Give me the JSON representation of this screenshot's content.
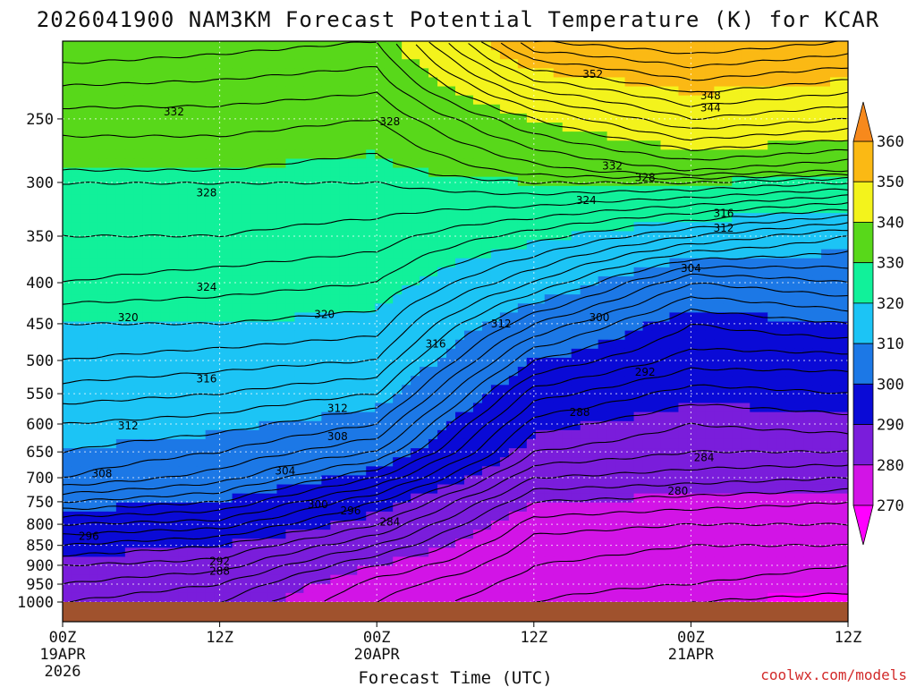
{
  "chart_data": {
    "type": "heatmap",
    "title": "2026041900 NAM3KM Forecast Potential Temperature (K) for KCAR",
    "xlabel": "Forecast Time (UTC)",
    "ylabel": "",
    "credit": "coolwx.com/models",
    "x_hours": [
      0,
      12,
      24,
      36,
      48,
      60
    ],
    "x_ticks": [
      {
        "hour": 0,
        "label": "00Z",
        "date": "19APR",
        "year": "2026"
      },
      {
        "hour": 12,
        "label": "12Z",
        "date": "",
        "year": ""
      },
      {
        "hour": 24,
        "label": "00Z",
        "date": "20APR",
        "year": ""
      },
      {
        "hour": 36,
        "label": "12Z",
        "date": "",
        "year": ""
      },
      {
        "hour": 48,
        "label": "00Z",
        "date": "21APR",
        "year": ""
      },
      {
        "hour": 60,
        "label": "12Z",
        "date": "",
        "year": ""
      }
    ],
    "pressure_ticks": [
      250,
      300,
      350,
      400,
      450,
      500,
      550,
      600,
      650,
      700,
      750,
      800,
      850,
      900,
      950,
      1000
    ],
    "ylim_hpa": [
      200,
      1000
    ],
    "colorbar": {
      "ticks": [
        360,
        350,
        340,
        330,
        320,
        310,
        300,
        290,
        280,
        270
      ],
      "bins": [
        {
          "from": 360,
          "to": 370,
          "color": "#f7891c"
        },
        {
          "from": 350,
          "to": 360,
          "color": "#fbb914"
        },
        {
          "from": 340,
          "to": 350,
          "color": "#f3f31c"
        },
        {
          "from": 330,
          "to": 340,
          "color": "#58d81a"
        },
        {
          "from": 320,
          "to": 330,
          "color": "#11f19a"
        },
        {
          "from": 310,
          "to": 320,
          "color": "#1cc4f5"
        },
        {
          "from": 300,
          "to": 310,
          "color": "#1c78e6"
        },
        {
          "from": 290,
          "to": 300,
          "color": "#0a0ad6"
        },
        {
          "from": 280,
          "to": 290,
          "color": "#7a1ddb"
        },
        {
          "from": 270,
          "to": 280,
          "color": "#d214e6"
        },
        {
          "from": 260,
          "to": 270,
          "color": "#ff00ff"
        }
      ]
    },
    "terrain_color": "#a0522d",
    "theta_profiles": [
      {
        "hour": 0,
        "p_hpa": [
          200,
          250,
          290,
          300,
          350,
          400,
          450,
          500,
          550,
          600,
          650,
          700,
          750,
          800,
          850,
          900,
          950,
          1000
        ],
        "theta_k": [
          340,
          333,
          330,
          328,
          326,
          324,
          320,
          318,
          315,
          312,
          310,
          308,
          302,
          296,
          292,
          288,
          286,
          284
        ]
      },
      {
        "hour": 12,
        "p_hpa": [
          200,
          250,
          290,
          300,
          350,
          400,
          450,
          500,
          550,
          600,
          650,
          700,
          750,
          800,
          850,
          900,
          950,
          1000
        ],
        "theta_k": [
          339,
          333,
          330,
          328,
          326,
          323,
          320,
          317,
          314,
          311,
          308,
          305,
          300,
          295,
          290,
          287,
          284,
          282
        ]
      },
      {
        "hour": 24,
        "p_hpa": [
          200,
          250,
          290,
          300,
          350,
          400,
          450,
          500,
          550,
          600,
          650,
          700,
          750,
          800,
          850,
          900,
          950,
          1000
        ],
        "theta_k": [
          338,
          332,
          329,
          328,
          325,
          322,
          319,
          316,
          312,
          308,
          304,
          298,
          292,
          288,
          284,
          280,
          277,
          276
        ]
      },
      {
        "hour": 36,
        "p_hpa": [
          200,
          250,
          290,
          300,
          350,
          400,
          450,
          500,
          550,
          600,
          650,
          700,
          750,
          800,
          850,
          900,
          950,
          1000
        ],
        "theta_k": [
          356,
          340,
          333,
          330,
          321,
          314,
          306,
          300,
          295,
          291,
          288,
          284,
          280,
          277,
          275,
          274,
          273,
          272
        ]
      },
      {
        "hour": 48,
        "p_hpa": [
          200,
          250,
          290,
          300,
          350,
          400,
          450,
          500,
          550,
          600,
          650,
          700,
          750,
          800,
          850,
          900,
          950,
          1000
        ],
        "theta_k": [
          358,
          346,
          336,
          330,
          316,
          304,
          298,
          295,
          291,
          288,
          286,
          283,
          279,
          276,
          274,
          273,
          272,
          270
        ]
      },
      {
        "hour": 60,
        "p_hpa": [
          200,
          250,
          290,
          300,
          350,
          400,
          450,
          500,
          550,
          600,
          650,
          700,
          750,
          800,
          850,
          900,
          950,
          1000
        ],
        "theta_k": [
          356,
          344,
          334,
          328,
          312,
          306,
          300,
          295,
          292,
          289,
          286,
          282,
          278,
          276,
          274,
          272,
          271,
          269
        ]
      }
    ],
    "contour_interval_k": 2,
    "contour_labels": [
      {
        "value": 352,
        "hour": 40.5,
        "p_hpa": 220
      },
      {
        "value": 348,
        "hour": 49.5,
        "p_hpa": 234
      },
      {
        "value": 344,
        "hour": 49.5,
        "p_hpa": 242
      },
      {
        "value": 332,
        "hour": 8.5,
        "p_hpa": 245
      },
      {
        "value": 328,
        "hour": 25,
        "p_hpa": 252
      },
      {
        "value": 332,
        "hour": 42,
        "p_hpa": 286
      },
      {
        "value": 328,
        "hour": 44.5,
        "p_hpa": 296
      },
      {
        "value": 328,
        "hour": 11,
        "p_hpa": 309
      },
      {
        "value": 324,
        "hour": 40,
        "p_hpa": 316
      },
      {
        "value": 316,
        "hour": 50.5,
        "p_hpa": 328
      },
      {
        "value": 312,
        "hour": 50.5,
        "p_hpa": 342
      },
      {
        "value": 304,
        "hour": 48,
        "p_hpa": 384
      },
      {
        "value": 324,
        "hour": 11,
        "p_hpa": 405
      },
      {
        "value": 320,
        "hour": 5,
        "p_hpa": 442
      },
      {
        "value": 320,
        "hour": 20,
        "p_hpa": 438
      },
      {
        "value": 312,
        "hour": 33.5,
        "p_hpa": 450
      },
      {
        "value": 300,
        "hour": 41,
        "p_hpa": 442
      },
      {
        "value": 316,
        "hour": 28.5,
        "p_hpa": 477
      },
      {
        "value": 292,
        "hour": 44.5,
        "p_hpa": 517
      },
      {
        "value": 316,
        "hour": 11,
        "p_hpa": 527
      },
      {
        "value": 312,
        "hour": 21,
        "p_hpa": 574
      },
      {
        "value": 288,
        "hour": 39.5,
        "p_hpa": 580
      },
      {
        "value": 312,
        "hour": 5,
        "p_hpa": 603
      },
      {
        "value": 308,
        "hour": 21,
        "p_hpa": 622
      },
      {
        "value": 284,
        "hour": 49,
        "p_hpa": 661
      },
      {
        "value": 304,
        "hour": 17,
        "p_hpa": 687
      },
      {
        "value": 308,
        "hour": 3,
        "p_hpa": 692
      },
      {
        "value": 280,
        "hour": 47,
        "p_hpa": 727
      },
      {
        "value": 300,
        "hour": 19.5,
        "p_hpa": 756
      },
      {
        "value": 296,
        "hour": 22,
        "p_hpa": 770
      },
      {
        "value": 284,
        "hour": 25,
        "p_hpa": 795
      },
      {
        "value": 296,
        "hour": 2,
        "p_hpa": 828
      },
      {
        "value": 292,
        "hour": 12,
        "p_hpa": 890
      },
      {
        "value": 288,
        "hour": 12,
        "p_hpa": 915
      }
    ]
  }
}
